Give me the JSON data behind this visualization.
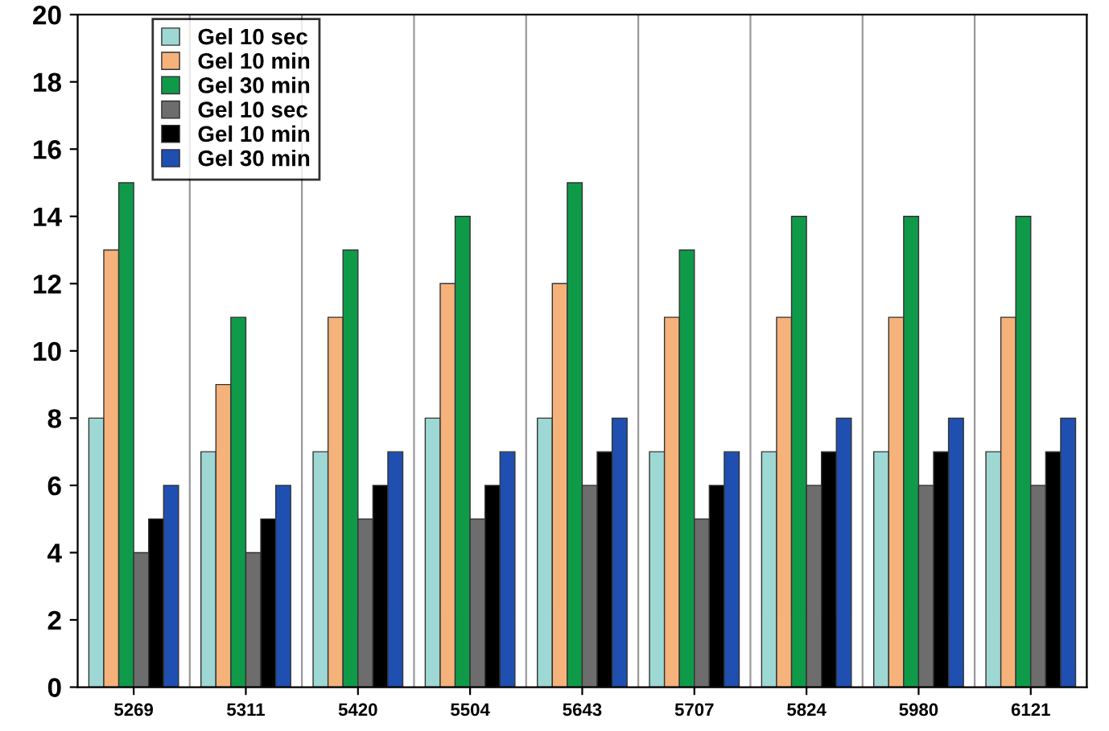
{
  "chart_data": {
    "type": "bar",
    "categories": [
      "5269",
      "5311",
      "5420",
      "5504",
      "5643",
      "5707",
      "5824",
      "5980",
      "6121"
    ],
    "series": [
      {
        "name": "Gel 10 sec",
        "color": "#9ed8d4",
        "values": [
          8,
          7,
          7,
          8,
          8,
          7,
          7,
          7,
          7
        ]
      },
      {
        "name": "Gel 10 min",
        "color": "#f5b27a",
        "values": [
          13,
          9,
          11,
          12,
          12,
          11,
          11,
          11,
          11
        ]
      },
      {
        "name": "Gel 30 min",
        "color": "#0f9a4a",
        "values": [
          15,
          11,
          13,
          14,
          15,
          13,
          14,
          14,
          14
        ]
      },
      {
        "name": "Gel 10 sec",
        "color": "#6d6d6d",
        "values": [
          4,
          4,
          5,
          5,
          6,
          5,
          6,
          6,
          6
        ]
      },
      {
        "name": "Gel 10 min",
        "color": "#000000",
        "values": [
          5,
          5,
          6,
          6,
          7,
          6,
          7,
          7,
          7
        ]
      },
      {
        "name": "Gel 30 min",
        "color": "#1f4fb0",
        "values": [
          6,
          6,
          7,
          7,
          8,
          7,
          8,
          8,
          8
        ]
      }
    ],
    "ylim": [
      0,
      20
    ],
    "yticks": [
      0,
      2,
      4,
      6,
      8,
      10,
      12,
      14,
      16,
      18,
      20
    ],
    "grid": "x",
    "legend": "top left"
  }
}
